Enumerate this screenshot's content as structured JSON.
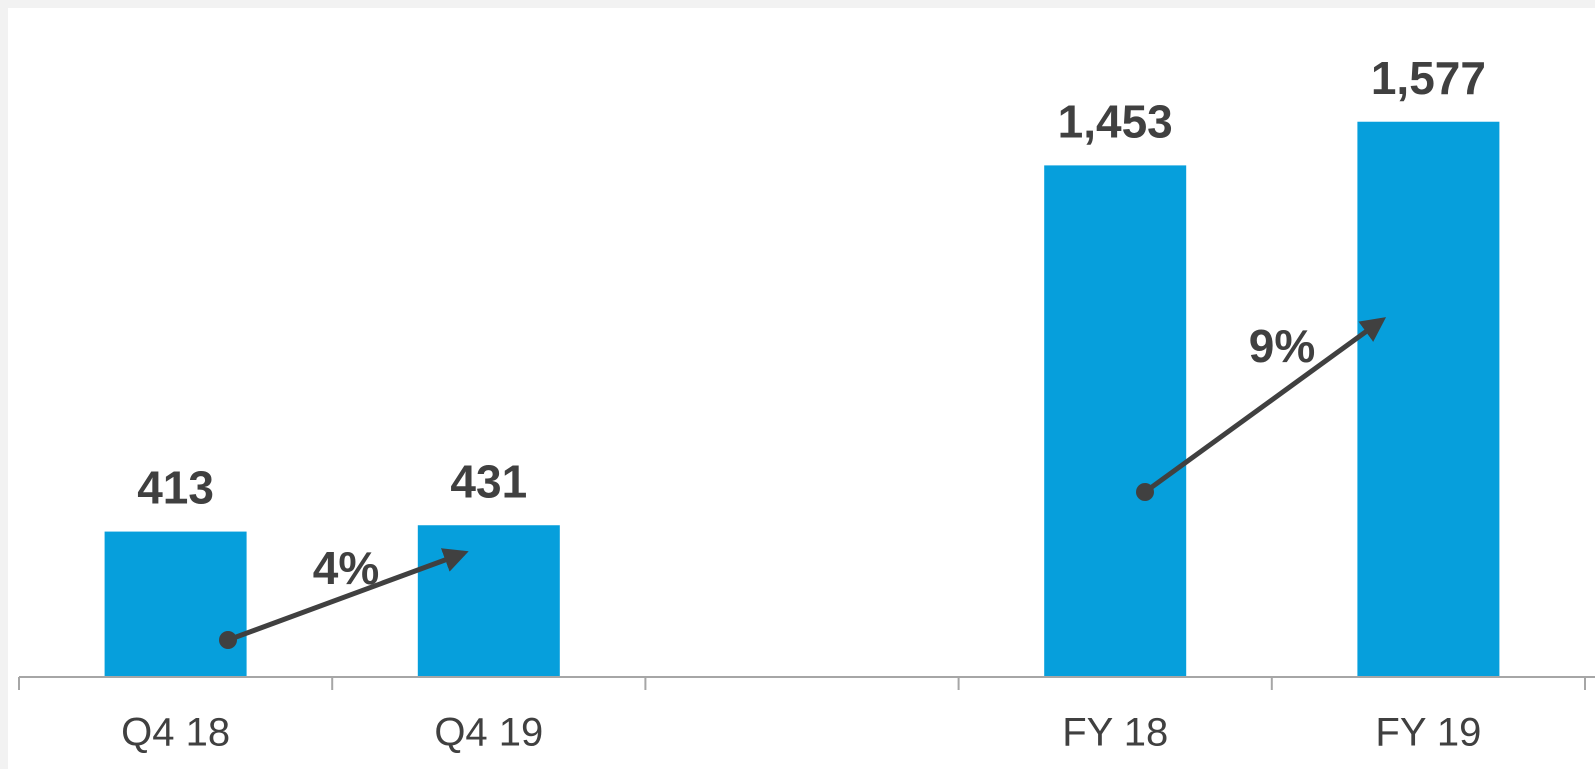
{
  "chart_data": {
    "type": "bar",
    "categories": [
      "Q4 18",
      "Q4 19",
      null,
      "FY 18",
      "FY 19"
    ],
    "values": [
      413,
      431,
      null,
      1453,
      1577
    ],
    "value_labels": [
      "413",
      "431",
      null,
      "1,453",
      "1,577"
    ],
    "color": "#069fdc",
    "ylim": [
      0,
      1900
    ],
    "grid": false,
    "annotations": [
      {
        "text": "4%"
      },
      {
        "text": "9%"
      }
    ]
  }
}
